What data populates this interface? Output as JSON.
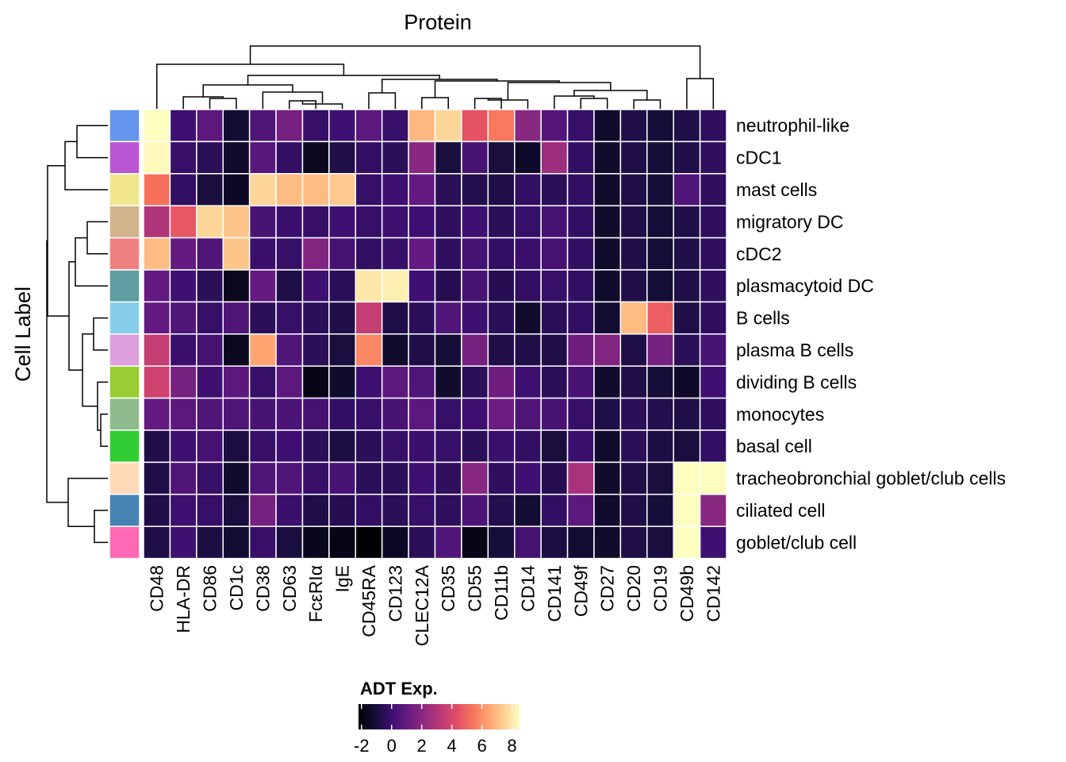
{
  "chart_data": {
    "type": "heatmap",
    "title": "Protein",
    "ylabel": "Cell Label",
    "legend_title": "ADT Exp.",
    "legend_ticks": [
      "-2",
      "0",
      "2",
      "4",
      "6",
      "8"
    ],
    "value_range": [
      -2.2,
      8.5
    ],
    "colormap": "magma",
    "legend_placement": "bottom",
    "columns": [
      "CD48",
      "HLA-DR",
      "CD86",
      "CD1c",
      "CD38",
      "CD63",
      "FcεRIα",
      "IgE",
      "CD45RA",
      "CD123",
      "CLEC12A",
      "CD35",
      "CD55",
      "CD11b",
      "CD14",
      "CD141",
      "CD49f",
      "CD27",
      "CD20",
      "CD19",
      "CD49b",
      "CD142"
    ],
    "rows": [
      "neutrophil-like",
      "cDC1",
      "mast cells",
      "migratory DC",
      "cDC2",
      "plasmacytoid DC",
      "B cells",
      "plasma B cells",
      "dividing B cells",
      "monocytes",
      "basal cell",
      "tracheobronchial goblet/club cells",
      "ciliated cell",
      "goblet/club cell"
    ],
    "row_colors": [
      "#6495ED",
      "#BA55D3",
      "#F0E68C",
      "#D2B48C",
      "#F08080",
      "#5F9EA0",
      "#87CEEB",
      "#DDA0DD",
      "#9ACD32",
      "#8FBC8F",
      "#32CD32",
      "#FFDAB9",
      "#4682B4",
      "#FF69B4"
    ],
    "values": [
      [
        8.5,
        0.0,
        0.8,
        -1.2,
        0.5,
        1.5,
        -0.2,
        0.0,
        0.8,
        -0.2,
        6.9,
        7.6,
        4.5,
        5.5,
        2.0,
        0.6,
        -0.2,
        -1.3,
        -0.8,
        -1.1,
        -0.8,
        -0.4
      ],
      [
        8.4,
        -0.2,
        -0.5,
        -1.3,
        0.7,
        -0.3,
        -1.6,
        -0.8,
        -0.3,
        -0.5,
        2.0,
        -1.0,
        0.3,
        -1.0,
        -1.4,
        2.5,
        -0.3,
        -1.3,
        -0.8,
        -1.1,
        -0.8,
        -0.4
      ],
      [
        5.3,
        -0.3,
        -1.0,
        -1.5,
        7.6,
        7.0,
        7.0,
        7.3,
        -0.2,
        0.0,
        1.0,
        -0.5,
        -0.7,
        -0.8,
        -0.3,
        -0.5,
        -0.3,
        -1.3,
        -0.8,
        -1.1,
        0.5,
        -0.4
      ],
      [
        3.0,
        4.6,
        7.6,
        7.2,
        0.3,
        -0.1,
        -0.2,
        0.0,
        -0.2,
        0.0,
        0.0,
        -0.4,
        0.0,
        -0.5,
        -0.2,
        0.2,
        -0.3,
        -1.3,
        -0.8,
        -1.1,
        -0.8,
        -0.4
      ],
      [
        7.0,
        1.0,
        0.5,
        7.2,
        -0.1,
        -0.2,
        1.8,
        0.2,
        -0.3,
        -0.2,
        1.0,
        -0.4,
        0.2,
        -0.3,
        -0.1,
        0.2,
        -0.3,
        -1.3,
        -0.8,
        -1.1,
        -0.8,
        -0.4
      ],
      [
        1.0,
        0.0,
        -0.5,
        -1.6,
        1.0,
        -0.8,
        0.0,
        -0.5,
        8.0,
        8.2,
        0.0,
        -0.6,
        0.3,
        -0.6,
        -0.3,
        -0.2,
        -0.3,
        -1.3,
        -0.8,
        -1.1,
        -0.8,
        -0.4
      ],
      [
        1.0,
        0.5,
        -0.2,
        0.5,
        -0.5,
        -0.2,
        -0.5,
        -0.8,
        3.5,
        -0.8,
        -0.5,
        0.5,
        0.0,
        -0.5,
        -1.3,
        -0.5,
        -0.3,
        -1.2,
        7.0,
        4.8,
        -0.8,
        -0.4
      ],
      [
        3.5,
        -0.1,
        0.2,
        -1.6,
        6.5,
        0.5,
        -0.5,
        -1.0,
        5.8,
        -1.3,
        -0.8,
        -1.1,
        1.5,
        -0.8,
        -0.8,
        -0.8,
        1.3,
        1.8,
        -0.8,
        1.5,
        -0.5,
        0.3
      ],
      [
        3.8,
        1.5,
        0.0,
        0.8,
        -0.2,
        0.8,
        -1.8,
        -1.3,
        0.0,
        0.8,
        0.5,
        -1.3,
        -0.5,
        1.3,
        0.0,
        -0.5,
        0.3,
        -1.3,
        -0.8,
        -1.1,
        -1.4,
        0.0
      ],
      [
        1.0,
        0.8,
        0.5,
        0.5,
        0.3,
        0.4,
        0.2,
        -0.3,
        -0.2,
        0.3,
        0.8,
        -0.2,
        0.0,
        1.2,
        0.5,
        0.3,
        -0.2,
        -0.8,
        -0.5,
        -0.7,
        -0.8,
        -0.4
      ],
      [
        -0.8,
        0.0,
        0.2,
        -0.9,
        -0.2,
        0.0,
        -0.5,
        -0.9,
        -0.5,
        -0.2,
        -0.1,
        -0.2,
        -0.5,
        -0.1,
        -0.3,
        -1.0,
        -0.1,
        -1.3,
        -0.5,
        -0.9,
        -1.0,
        -0.3
      ],
      [
        -0.8,
        0.5,
        -0.2,
        -1.3,
        0.5,
        0.5,
        -0.2,
        0.3,
        -0.5,
        -0.5,
        0.0,
        -0.4,
        2.0,
        -0.4,
        0.0,
        -0.6,
        2.8,
        -1.3,
        -0.8,
        -1.0,
        8.5,
        8.5
      ],
      [
        -0.8,
        0.0,
        -0.2,
        -1.0,
        1.5,
        -0.1,
        -0.8,
        -0.6,
        -0.3,
        -0.5,
        -0.2,
        -0.4,
        0.4,
        -0.7,
        -1.2,
        -0.3,
        0.8,
        -1.3,
        -0.8,
        -1.1,
        8.5,
        2.0
      ],
      [
        -0.8,
        0.0,
        -0.9,
        -1.2,
        -0.2,
        -1.0,
        -1.7,
        -1.8,
        -2.2,
        -1.5,
        -0.5,
        0.5,
        -1.8,
        -1.1,
        0.2,
        -0.9,
        -1.2,
        -1.3,
        -0.8,
        -1.0,
        8.5,
        0.0
      ]
    ]
  }
}
